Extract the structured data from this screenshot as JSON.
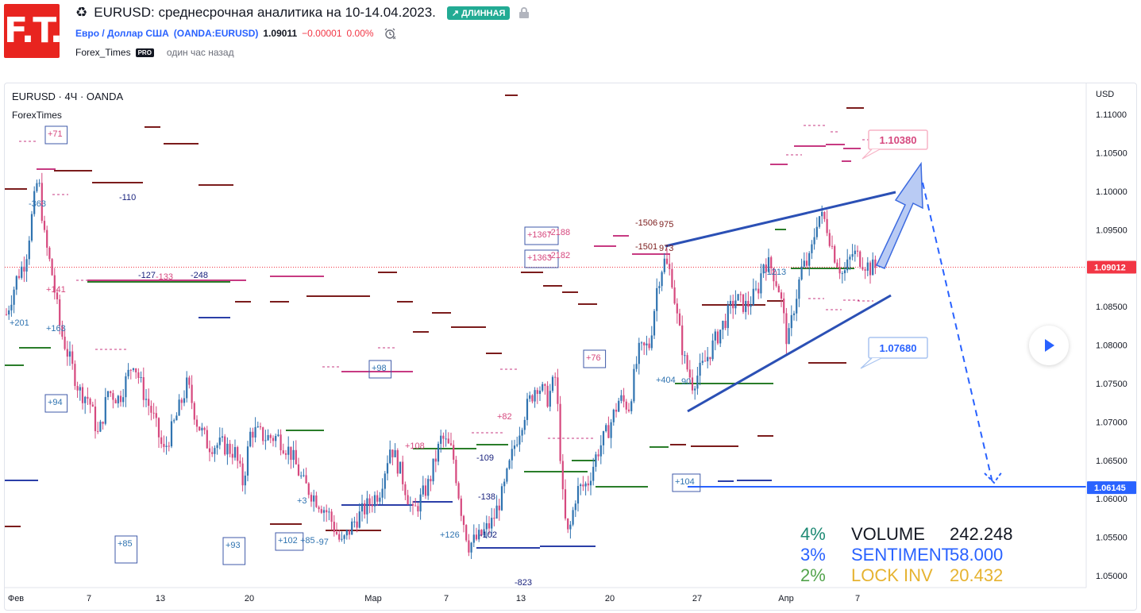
{
  "header": {
    "logo_text": "F.T.",
    "title": "EURUSD: среднесрочная аналитика на 10-14.04.2023.",
    "badge": "↗ ДЛИННАЯ",
    "symbol_name": "Евро / Доллар США",
    "symbol_code": "(OANDA:EURUSD)",
    "price": "1.09011",
    "change": "−0.00001",
    "change_pct": "0.00%",
    "author": "Forex_Times",
    "pro": "PRO",
    "time_ago": "один час назад"
  },
  "chart": {
    "legend_title": "EURUSD · 4Ч · OANDA",
    "legend_sub": "ForexTimes",
    "currency": "USD",
    "price_labels": [
      "1.11000",
      "1.10500",
      "1.10000",
      "1.09500",
      "1.09000",
      "1.08500",
      "1.08000",
      "1.07500",
      "1.07000",
      "1.06500",
      "1.06000",
      "1.05500",
      "1.05000"
    ],
    "current_price": "1.09012",
    "target_price": "1.06145",
    "time_labels": [
      "Фев",
      "7",
      "13",
      "20",
      "Мар",
      "7",
      "13",
      "20",
      "27",
      "Апр",
      "7"
    ],
    "callout_upper": "1.10380",
    "callout_lower": "1.07680",
    "annotations": [
      "+71",
      "-363",
      "+201",
      "+163",
      "+141",
      "+94",
      "-110",
      "-127",
      "-133",
      "-248",
      "+98",
      "+76",
      "+1367",
      "-2188",
      "+1363",
      "-2182",
      "-1506",
      "975",
      "-1501",
      "973",
      "+404",
      "90",
      "+85",
      "+93",
      "+102",
      "+85",
      "-97",
      "+108",
      "-109",
      "-138",
      "+126",
      "-102",
      "-823",
      "+82",
      "+104",
      "+3",
      "-1213"
    ],
    "colors": {
      "up": "#2f73b0",
      "down": "#d6487e",
      "brand": "#e8241f",
      "accent": "#2962ff"
    }
  },
  "stats": [
    {
      "pct": "4%",
      "label": "VOLUME",
      "value": "242.248",
      "pct_color": "#1e8a74",
      "label_color": "#131722",
      "value_color": "#131722"
    },
    {
      "pct": "3%",
      "label": "SENTIMENT",
      "value": "58.000",
      "pct_color": "#2962ff",
      "label_color": "#2962ff",
      "value_color": "#2962ff"
    },
    {
      "pct": "2%",
      "label": "LOCK INV",
      "value": "20.432",
      "pct_color": "#52a34b",
      "label_color": "#e6b331",
      "value_color": "#e6b331"
    }
  ]
}
